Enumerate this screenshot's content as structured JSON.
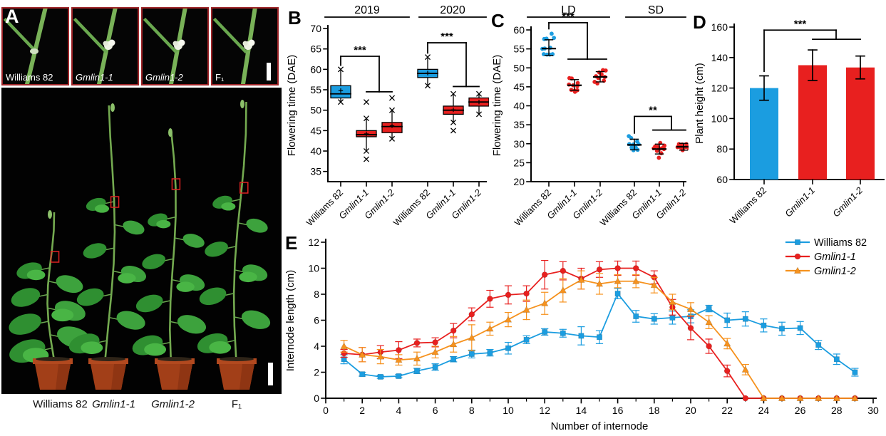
{
  "colors": {
    "blue": "#1b9de0",
    "red": "#e8201f",
    "orange": "#f6921e",
    "black": "#000000",
    "photo_border": "#9e2428",
    "pot": "#a23f18",
    "leaf": "#3da23d"
  },
  "panel_letters": {
    "a": "A",
    "b": "B",
    "c": "C",
    "d": "D",
    "e": "E"
  },
  "panel_a": {
    "photos": [
      {
        "label": "Williams 82",
        "italic": false
      },
      {
        "label": "Gmlin1-1",
        "italic": true
      },
      {
        "label": "Gmlin1-2",
        "italic": true
      },
      {
        "label": "F₁",
        "italic": false
      }
    ],
    "bottom_labels": [
      "Williams 82",
      "Gmlin1-1",
      "Gmlin1-2",
      "F₁"
    ],
    "scale_bars": 2
  },
  "chart_data": [
    {
      "id": "B",
      "type": "boxplot",
      "ylabel": "Flowering time (DAE)",
      "ylim": [
        35,
        70
      ],
      "yticks": [
        35,
        40,
        45,
        50,
        55,
        60,
        65,
        70
      ],
      "groups": [
        {
          "label": "2019",
          "sig": "***",
          "boxes": [
            {
              "category": "Williams 82",
              "italic": false,
              "color": "blue",
              "low": 52,
              "q1": 53,
              "median": 54,
              "q3": 56,
              "high": 60,
              "mean": 54.8,
              "outliers": []
            },
            {
              "category": "Gmlin1-1",
              "italic": true,
              "color": "red",
              "low": 40,
              "q1": 43.5,
              "median": 44,
              "q3": 45,
              "high": 48,
              "mean": 44.2,
              "outliers": [
                38,
                52
              ]
            },
            {
              "category": "Gmlin1-2",
              "italic": true,
              "color": "red",
              "low": 43,
              "q1": 44.5,
              "median": 46,
              "q3": 47,
              "high": 50,
              "mean": 46.2,
              "outliers": [
                53
              ]
            }
          ]
        },
        {
          "label": "2020",
          "sig": "***",
          "boxes": [
            {
              "category": "Williams 82",
              "italic": false,
              "color": "blue",
              "low": 56,
              "q1": 58,
              "median": 59,
              "q3": 60,
              "high": 63,
              "mean": 59.1,
              "outliers": []
            },
            {
              "category": "Gmlin1-1",
              "italic": true,
              "color": "red",
              "low": 47,
              "q1": 49,
              "median": 50,
              "q3": 51,
              "high": 54,
              "mean": 50.1,
              "outliers": [
                45
              ]
            },
            {
              "category": "Gmlin1-2",
              "italic": true,
              "color": "red",
              "low": 49,
              "q1": 51,
              "median": 52,
              "q3": 53,
              "high": 54,
              "mean": 52,
              "outliers": []
            }
          ]
        }
      ]
    },
    {
      "id": "C",
      "type": "scatter",
      "ylabel": "Flowering time (DAE)",
      "ylim": [
        20,
        60
      ],
      "yticks": [
        20,
        25,
        30,
        35,
        40,
        45,
        50,
        55,
        60
      ],
      "groups": [
        {
          "label": "LD",
          "sig": "***",
          "series": [
            {
              "category": "Williams 82",
              "italic": false,
              "color": "blue",
              "mean": 55.1,
              "err_low": 53.3,
              "err_high": 57.4,
              "points": [
                [
                  -0.55,
                  53.6
                ],
                [
                  -0.2,
                  53.5
                ],
                [
                  0.1,
                  53.5
                ],
                [
                  0.4,
                  53.6
                ],
                [
                  -0.7,
                  55.0
                ],
                [
                  -0.45,
                  55.1
                ],
                [
                  -0.5,
                  57.6
                ],
                [
                  -0.25,
                  57.7
                ],
                [
                  0.3,
                  59.0
                ],
                [
                  0.55,
                  57.9
                ],
                [
                  0.15,
                  55.3
                ]
              ]
            },
            {
              "category": "Gmlin1-1",
              "italic": true,
              "color": "red",
              "mean": 45.4,
              "err_low": 44.1,
              "err_high": 46.9,
              "points": [
                [
                  -0.55,
                  47.3
                ],
                [
                  -0.3,
                  47.2
                ],
                [
                  0.35,
                  46.0
                ],
                [
                  -0.6,
                  45.6
                ],
                [
                  -0.15,
                  45.4
                ],
                [
                  0.3,
                  45.2
                ],
                [
                  -0.35,
                  44.2
                ],
                [
                  0,
                  44.0
                ],
                [
                  0.3,
                  44.1
                ],
                [
                  0.05,
                  43.7
                ]
              ]
            },
            {
              "category": "Gmlin1-2",
              "italic": true,
              "color": "red",
              "mean": 47.6,
              "err_low": 46.3,
              "err_high": 49.0,
              "points": [
                [
                  0.3,
                  49.4
                ],
                [
                  0.6,
                  49.3
                ],
                [
                  -0.1,
                  48.8
                ],
                [
                  0.15,
                  48.3
                ],
                [
                  -0.45,
                  47.8
                ],
                [
                  0.5,
                  47.6
                ],
                [
                  -0.2,
                  47.3
                ],
                [
                  -0.6,
                  46.3
                ],
                [
                  -0.3,
                  45.9
                ],
                [
                  0.4,
                  46.6
                ]
              ]
            }
          ]
        },
        {
          "label": "SD",
          "sig": "**",
          "series": [
            {
              "category": "Williams 82",
              "italic": false,
              "color": "blue",
              "mean": 29.7,
              "err_low": 28.4,
              "err_high": 31.2,
              "points": [
                [
                  -0.6,
                  32.0
                ],
                [
                  -0.35,
                  31.5
                ],
                [
                  0.3,
                  30.6
                ],
                [
                  -0.55,
                  29.9
                ],
                [
                  -0.1,
                  29.8
                ],
                [
                  0.45,
                  29.9
                ],
                [
                  -0.3,
                  29.0
                ],
                [
                  0.15,
                  29.0
                ],
                [
                  -0.1,
                  28.3
                ],
                [
                  0.35,
                  28.4
                ]
              ]
            },
            {
              "category": "Gmlin1-1",
              "italic": true,
              "color": "red",
              "mean": 28.6,
              "err_low": 27.3,
              "err_high": 29.9,
              "points": [
                [
                  0.1,
                  30.2
                ],
                [
                  -0.45,
                  29.3
                ],
                [
                  -0.15,
                  29.2
                ],
                [
                  0.4,
                  29.0
                ],
                [
                  -0.6,
                  28.8
                ],
                [
                  0.1,
                  28.7
                ],
                [
                  0.5,
                  28.6
                ],
                [
                  -0.25,
                  28.1
                ],
                [
                  0.2,
                  27.5
                ],
                [
                  -0.05,
                  26.3
                ],
                [
                  0.55,
                  29.5
                ]
              ]
            },
            {
              "category": "Gmlin1-2",
              "italic": true,
              "color": "red",
              "mean": 29.2,
              "err_low": 28.3,
              "err_high": 30.1,
              "points": [
                [
                  -0.5,
                  29.9
                ],
                [
                  -0.15,
                  29.8
                ],
                [
                  0.3,
                  29.9
                ],
                [
                  -0.65,
                  29.1
                ],
                [
                  -0.3,
                  29.0
                ],
                [
                  0.05,
                  29.0
                ],
                [
                  0.4,
                  29.1
                ],
                [
                  0.65,
                  29.0
                ],
                [
                  -0.1,
                  28.3
                ],
                [
                  0.55,
                  28.9
                ]
              ]
            }
          ]
        }
      ]
    },
    {
      "id": "D",
      "type": "bar",
      "ylabel": "Plant height (cm)",
      "ylim": [
        60,
        160
      ],
      "yticks": [
        60,
        80,
        100,
        120,
        140,
        160
      ],
      "sig": "***",
      "categories": [
        {
          "label": "Williams 82",
          "italic": false
        },
        {
          "label": "Gmlin1-1",
          "italic": true
        },
        {
          "label": "Gmlin1-2",
          "italic": true
        }
      ],
      "values": [
        120,
        135,
        133.5
      ],
      "errors_low": [
        112,
        125,
        126
      ],
      "errors_high": [
        128,
        145,
        141
      ],
      "bar_colors": [
        "blue",
        "red",
        "red"
      ]
    },
    {
      "id": "E",
      "type": "line",
      "xlabel": "Number of internode",
      "ylabel": "Internode length (cm)",
      "xlim": [
        0,
        30
      ],
      "ylim": [
        0,
        12
      ],
      "xticks": [
        0,
        2,
        4,
        6,
        8,
        10,
        12,
        14,
        16,
        18,
        20,
        22,
        24,
        26,
        28,
        30
      ],
      "yticks": [
        0,
        2,
        4,
        6,
        8,
        10,
        12
      ],
      "legend_position": "top-right",
      "series": [
        {
          "name": "Williams 82",
          "italic": false,
          "color": "blue",
          "marker": "square",
          "x": [
            1,
            2,
            3,
            4,
            5,
            6,
            7,
            8,
            9,
            10,
            11,
            12,
            13,
            14,
            15,
            16,
            17,
            18,
            19,
            20,
            21,
            22,
            23,
            24,
            25,
            26,
            27,
            28,
            29
          ],
          "y": [
            3.0,
            1.85,
            1.65,
            1.7,
            2.1,
            2.4,
            3.0,
            3.4,
            3.5,
            3.85,
            4.5,
            5.1,
            5.0,
            4.8,
            4.7,
            8.05,
            6.3,
            6.1,
            6.2,
            6.3,
            6.9,
            6.0,
            6.1,
            5.6,
            5.35,
            5.4,
            4.1,
            3.0,
            2.0
          ],
          "err": [
            0.35,
            0.15,
            0.12,
            0.12,
            0.2,
            0.25,
            0.2,
            0.3,
            0.25,
            0.45,
            0.3,
            0.25,
            0.3,
            0.7,
            0.5,
            0.4,
            0.45,
            0.4,
            0.5,
            0.5,
            0.25,
            0.55,
            0.55,
            0.5,
            0.5,
            0.5,
            0.35,
            0.4,
            0.3
          ]
        },
        {
          "name": "Gmlin1-1",
          "italic": true,
          "color": "red",
          "marker": "circle",
          "x": [
            1,
            2,
            3,
            4,
            5,
            6,
            7,
            8,
            9,
            10,
            11,
            12,
            13,
            14,
            15,
            16,
            17,
            18,
            19,
            20,
            21,
            22,
            23,
            24,
            25,
            26,
            27,
            28,
            29
          ],
          "y": [
            3.45,
            3.35,
            3.55,
            3.7,
            4.25,
            4.3,
            5.2,
            6.45,
            7.65,
            7.95,
            8.05,
            9.5,
            9.8,
            9.2,
            9.9,
            10.0,
            10.0,
            9.3,
            7.0,
            5.4,
            4.0,
            2.1,
            0,
            0,
            0,
            0,
            0,
            0,
            0
          ],
          "err": [
            0.3,
            0.55,
            0.5,
            0.65,
            0.3,
            0.35,
            0.55,
            0.5,
            0.65,
            0.7,
            0.6,
            1.1,
            0.7,
            0.8,
            0.6,
            0.55,
            0.55,
            0.5,
            0.6,
            0.9,
            0.55,
            0.45,
            0,
            0,
            0,
            0,
            0,
            0,
            0
          ]
        },
        {
          "name": "Gmlin1-2",
          "italic": true,
          "color": "orange",
          "marker": "triangle",
          "x": [
            1,
            2,
            3,
            4,
            5,
            6,
            7,
            8,
            9,
            10,
            11,
            12,
            13,
            14,
            15,
            16,
            17,
            18,
            19,
            20,
            21,
            22,
            23,
            24,
            25,
            26,
            27,
            28,
            29
          ],
          "y": [
            4.0,
            3.35,
            3.2,
            2.95,
            3.05,
            3.55,
            4.15,
            4.65,
            5.35,
            6.05,
            6.8,
            7.3,
            8.3,
            9.1,
            8.8,
            9.0,
            9.0,
            8.7,
            7.4,
            6.85,
            5.85,
            4.2,
            2.2,
            0,
            0,
            0,
            0,
            0,
            0
          ],
          "err": [
            0.45,
            0.55,
            0.55,
            0.4,
            0.5,
            0.45,
            0.6,
            1.0,
            0.5,
            0.55,
            0.75,
            0.85,
            0.9,
            0.7,
            0.8,
            0.5,
            0.5,
            0.6,
            0.6,
            0.5,
            0.5,
            0.4,
            0.4,
            0,
            0,
            0,
            0,
            0,
            0
          ]
        }
      ]
    }
  ]
}
